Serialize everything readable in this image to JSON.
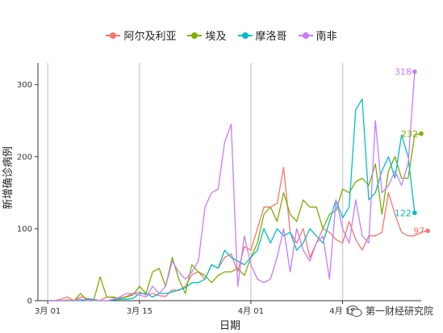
{
  "chart_data": {
    "type": "line",
    "title": "",
    "xlabel": "日期",
    "ylabel": "新增确诊病例",
    "ylim": [
      0,
      330
    ],
    "yticks": [
      0,
      100,
      200,
      300
    ],
    "xticks": [
      {
        "day": 1,
        "label": "3月 01"
      },
      {
        "day": 15,
        "label": "3月 15"
      },
      {
        "day": 32,
        "label": "4月 01"
      },
      {
        "day": 46,
        "label": "4月 15"
      }
    ],
    "xlim": [
      -0.5,
      58
    ],
    "grid": "vertical",
    "legend_position": "top",
    "x_start_day": 1,
    "series": [
      {
        "name": "阿尔及利亚",
        "color": "#F8766D",
        "end_label": "97",
        "values": [
          0,
          0,
          2,
          5,
          0,
          5,
          3,
          2,
          0,
          5,
          4,
          3,
          6,
          10,
          12,
          8,
          10,
          7,
          6,
          15,
          14,
          20,
          36,
          40,
          30,
          50,
          45,
          60,
          65,
          40,
          75,
          70,
          100,
          130,
          130,
          135,
          185,
          95,
          80,
          100,
          60,
          80,
          100,
          95,
          85,
          80,
          110,
          85,
          70,
          90,
          90,
          95,
          150,
          120,
          95,
          90,
          90,
          95,
          97
        ]
      },
      {
        "name": "埃及",
        "color": "#7CAE00",
        "end_label": "232",
        "values": [
          0,
          0,
          0,
          1,
          0,
          10,
          0,
          0,
          33,
          5,
          5,
          3,
          5,
          8,
          20,
          10,
          40,
          45,
          20,
          60,
          30,
          10,
          50,
          40,
          35,
          25,
          35,
          40,
          40,
          45,
          35,
          60,
          80,
          120,
          130,
          110,
          150,
          120,
          110,
          140,
          130,
          130,
          100,
          120,
          125,
          155,
          150,
          165,
          170,
          160,
          190,
          120,
          180,
          200,
          170,
          170,
          230,
          232
        ]
      },
      {
        "name": "摩洛哥",
        "color": "#00BFC4",
        "end_label": "122",
        "values": [
          0,
          0,
          0,
          0,
          0,
          0,
          2,
          1,
          0,
          0,
          1,
          2,
          2,
          3,
          10,
          10,
          5,
          10,
          10,
          12,
          15,
          18,
          25,
          25,
          30,
          50,
          45,
          70,
          60,
          55,
          50,
          60,
          70,
          100,
          80,
          100,
          90,
          95,
          70,
          80,
          100,
          90,
          80,
          110,
          140,
          115,
          130,
          265,
          280,
          140,
          150,
          180,
          200,
          170,
          230,
          200,
          122
        ]
      },
      {
        "name": "南非",
        "color": "#C77CFF",
        "end_label": "318",
        "values": [
          0,
          0,
          0,
          0,
          0,
          2,
          0,
          0,
          0,
          0,
          2,
          5,
          10,
          10,
          8,
          5,
          20,
          10,
          20,
          55,
          40,
          30,
          40,
          55,
          130,
          150,
          155,
          220,
          245,
          20,
          90,
          50,
          30,
          25,
          30,
          60,
          100,
          40,
          100,
          70,
          55,
          80,
          90,
          30,
          140,
          100,
          80,
          140,
          90,
          80,
          250,
          150,
          160,
          180,
          160,
          190,
          318
        ]
      }
    ]
  },
  "watermark": {
    "text": "第一财经研究院"
  }
}
